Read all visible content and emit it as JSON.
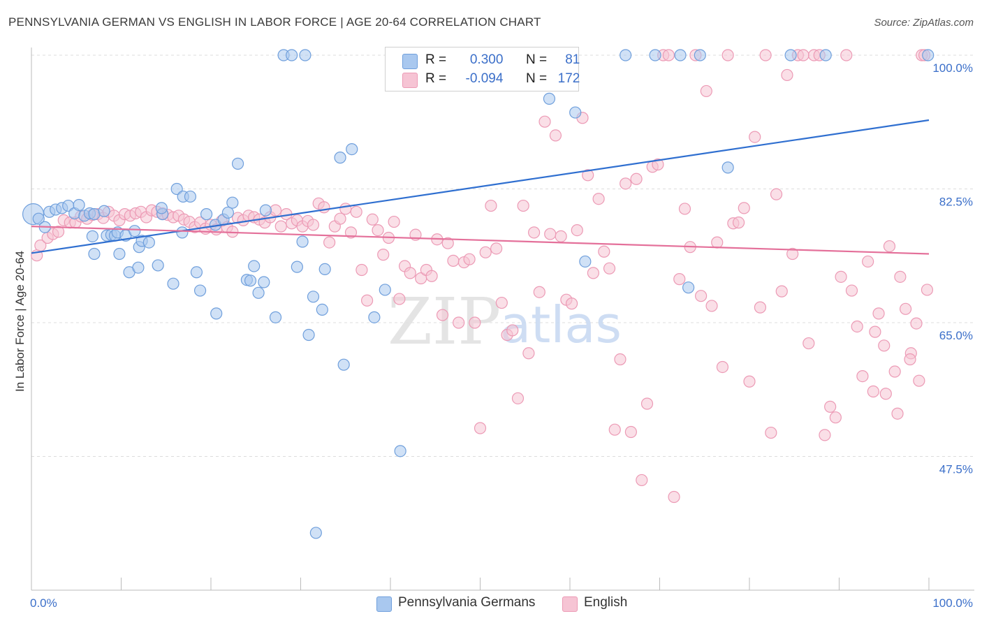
{
  "header": {
    "title": "PENNSYLVANIA GERMAN VS ENGLISH IN LABOR FORCE | AGE 20-64 CORRELATION CHART",
    "source": "Source: ZipAtlas.com"
  },
  "legend": {
    "rows": [
      {
        "r_label": "R =",
        "r_value": "0.300",
        "n_label": "N =",
        "n_value": "81"
      },
      {
        "r_label": "R =",
        "r_value": "-0.094",
        "n_label": "N =",
        "n_value": "172"
      }
    ]
  },
  "watermark": {
    "zip": "ZIP",
    "atlas": "atlas"
  },
  "chart_data": {
    "type": "scatter",
    "xlabel": "",
    "ylabel": "In Labor Force | Age 20-64",
    "xlim": [
      0,
      100
    ],
    "ylim": [
      30,
      100
    ],
    "x_tick_labels": [
      {
        "value": 0,
        "label": "0.0%"
      },
      {
        "value": 100,
        "label": "100.0%"
      }
    ],
    "y_tick_labels": [
      {
        "value": 100,
        "label": "100.0%"
      },
      {
        "value": 82.5,
        "label": "82.5%"
      },
      {
        "value": 65,
        "label": "65.0%"
      },
      {
        "value": 47.5,
        "label": "47.5%"
      }
    ],
    "grid": true,
    "legend_position": "top-center",
    "colors": {
      "blue_fill": "#a9c8ef",
      "blue_stroke": "#6f9fdc",
      "blue_line": "#2f6fd0",
      "pink_fill": "#f6c4d4",
      "pink_stroke": "#ec9ab5",
      "pink_line": "#e4709a",
      "tick_label": "#3b6fc9",
      "grid": "#dcdcdc"
    },
    "series": [
      {
        "name": "Pennsylvania Germans",
        "color": "#a9c8ef",
        "trend": {
          "x": [
            0,
            100
          ],
          "y": [
            74.1,
            91.5
          ]
        },
        "points": [
          [
            0.2,
            79.2
          ],
          [
            0.8,
            78.6
          ],
          [
            1.5,
            77.5
          ],
          [
            2.0,
            79.5
          ],
          [
            2.7,
            79.8
          ],
          [
            3.4,
            80.0
          ],
          [
            4.1,
            80.3
          ],
          [
            4.8,
            79.3
          ],
          [
            5.3,
            80.4
          ],
          [
            5.9,
            79.0
          ],
          [
            6.5,
            79.3
          ],
          [
            7.0,
            79.2
          ],
          [
            6.8,
            76.3
          ],
          [
            8.1,
            79.6
          ],
          [
            8.4,
            76.4
          ],
          [
            8.9,
            76.5
          ],
          [
            9.3,
            76.4
          ],
          [
            9.6,
            76.8
          ],
          [
            10.5,
            76.4
          ],
          [
            11.5,
            77.0
          ],
          [
            7.0,
            74.0
          ],
          [
            9.8,
            74.0
          ],
          [
            12.0,
            74.9
          ],
          [
            12.3,
            75.7
          ],
          [
            13.1,
            75.5
          ],
          [
            10.9,
            71.6
          ],
          [
            11.9,
            72.2
          ],
          [
            14.1,
            72.5
          ],
          [
            14.6,
            79.2
          ],
          [
            14.5,
            80.0
          ],
          [
            15.8,
            70.1
          ],
          [
            16.2,
            82.5
          ],
          [
            16.8,
            76.8
          ],
          [
            16.9,
            81.5
          ],
          [
            17.7,
            81.5
          ],
          [
            18.4,
            71.6
          ],
          [
            18.8,
            69.2
          ],
          [
            19.5,
            79.2
          ],
          [
            20.5,
            77.8
          ],
          [
            20.6,
            66.2
          ],
          [
            21.4,
            78.5
          ],
          [
            21.9,
            79.4
          ],
          [
            22.4,
            80.7
          ],
          [
            23.0,
            85.8
          ],
          [
            24.0,
            70.6
          ],
          [
            24.4,
            70.5
          ],
          [
            24.8,
            72.4
          ],
          [
            25.3,
            68.9
          ],
          [
            25.9,
            70.3
          ],
          [
            26.1,
            79.7
          ],
          [
            27.2,
            65.7
          ],
          [
            28.1,
            100.0
          ],
          [
            29.0,
            100.0
          ],
          [
            29.6,
            72.3
          ],
          [
            30.2,
            75.6
          ],
          [
            30.5,
            100.0
          ],
          [
            30.9,
            63.4
          ],
          [
            31.4,
            68.4
          ],
          [
            32.4,
            66.7
          ],
          [
            32.7,
            72.0
          ],
          [
            34.4,
            86.6
          ],
          [
            34.8,
            59.5
          ],
          [
            35.7,
            87.7
          ],
          [
            38.2,
            65.7
          ],
          [
            39.4,
            69.3
          ],
          [
            41.1,
            48.2
          ],
          [
            31.7,
            37.5
          ],
          [
            57.7,
            94.3
          ],
          [
            55.1,
            100.0
          ],
          [
            58.5,
            100.0
          ],
          [
            60.6,
            92.5
          ],
          [
            61.7,
            73.0
          ],
          [
            66.2,
            100.0
          ],
          [
            69.5,
            100.0
          ],
          [
            73.2,
            69.6
          ],
          [
            72.3,
            100.0
          ],
          [
            84.6,
            100.0
          ],
          [
            88.5,
            100.0
          ],
          [
            99.9,
            100.0
          ],
          [
            74.5,
            100.0
          ],
          [
            77.6,
            85.3
          ]
        ]
      },
      {
        "name": "English",
        "color": "#f6c4d4",
        "trend": {
          "x": [
            0,
            100
          ],
          "y": [
            77.6,
            74.0
          ]
        },
        "points": [
          [
            0.6,
            73.8
          ],
          [
            1.0,
            75.1
          ],
          [
            1.8,
            76.1
          ],
          [
            2.4,
            76.6
          ],
          [
            3.0,
            76.9
          ],
          [
            3.6,
            78.4
          ],
          [
            4.3,
            78.1
          ],
          [
            4.9,
            78.1
          ],
          [
            5.5,
            78.9
          ],
          [
            6.2,
            78.6
          ],
          [
            6.8,
            79.1
          ],
          [
            7.4,
            79.2
          ],
          [
            8.0,
            78.7
          ],
          [
            8.6,
            79.5
          ],
          [
            9.2,
            79.0
          ],
          [
            9.8,
            78.4
          ],
          [
            10.4,
            79.2
          ],
          [
            11.0,
            79.0
          ],
          [
            11.6,
            79.3
          ],
          [
            12.2,
            79.5
          ],
          [
            12.8,
            78.8
          ],
          [
            13.4,
            79.7
          ],
          [
            14.0,
            79.5
          ],
          [
            14.6,
            79.3
          ],
          [
            15.2,
            79.1
          ],
          [
            15.8,
            78.8
          ],
          [
            16.4,
            79.0
          ],
          [
            17.0,
            78.5
          ],
          [
            17.6,
            78.2
          ],
          [
            18.2,
            77.5
          ],
          [
            18.8,
            78.1
          ],
          [
            19.4,
            77.3
          ],
          [
            20.0,
            77.8
          ],
          [
            20.6,
            77.2
          ],
          [
            21.2,
            78.3
          ],
          [
            21.8,
            77.5
          ],
          [
            22.4,
            76.9
          ],
          [
            23.0,
            78.7
          ],
          [
            23.6,
            78.4
          ],
          [
            24.2,
            79.0
          ],
          [
            24.8,
            78.8
          ],
          [
            25.4,
            78.5
          ],
          [
            26.0,
            78.1
          ],
          [
            26.6,
            78.8
          ],
          [
            27.2,
            79.7
          ],
          [
            27.8,
            77.6
          ],
          [
            28.4,
            79.2
          ],
          [
            29.0,
            78.0
          ],
          [
            29.6,
            78.4
          ],
          [
            30.2,
            77.6
          ],
          [
            30.8,
            78.3
          ],
          [
            31.4,
            77.8
          ],
          [
            32.0,
            80.6
          ],
          [
            32.6,
            80.1
          ],
          [
            33.2,
            75.5
          ],
          [
            33.8,
            77.6
          ],
          [
            34.4,
            78.6
          ],
          [
            35.0,
            79.9
          ],
          [
            35.6,
            76.8
          ],
          [
            36.2,
            79.5
          ],
          [
            36.8,
            71.9
          ],
          [
            37.4,
            67.9
          ],
          [
            38.0,
            78.5
          ],
          [
            38.6,
            77.1
          ],
          [
            39.2,
            73.9
          ],
          [
            39.8,
            76.1
          ],
          [
            40.4,
            78.2
          ],
          [
            41.0,
            68.1
          ],
          [
            41.6,
            72.4
          ],
          [
            42.2,
            71.5
          ],
          [
            42.8,
            76.5
          ],
          [
            43.4,
            70.8
          ],
          [
            44.0,
            71.9
          ],
          [
            44.6,
            71.1
          ],
          [
            45.2,
            75.9
          ],
          [
            45.8,
            66.0
          ],
          [
            46.4,
            75.4
          ],
          [
            47.0,
            73.1
          ],
          [
            47.6,
            65.0
          ],
          [
            48.2,
            72.9
          ],
          [
            48.8,
            73.3
          ],
          [
            49.4,
            65.0
          ],
          [
            50.0,
            51.2
          ],
          [
            50.6,
            74.2
          ],
          [
            51.2,
            80.3
          ],
          [
            51.8,
            74.7
          ],
          [
            52.4,
            67.6
          ],
          [
            53.0,
            63.4
          ],
          [
            53.6,
            64.0
          ],
          [
            54.2,
            55.1
          ],
          [
            54.8,
            80.3
          ],
          [
            55.4,
            61.0
          ],
          [
            56.0,
            76.8
          ],
          [
            56.6,
            69.0
          ],
          [
            57.2,
            91.3
          ],
          [
            57.8,
            76.6
          ],
          [
            58.4,
            89.5
          ],
          [
            59.0,
            76.3
          ],
          [
            59.6,
            68.0
          ],
          [
            60.2,
            67.5
          ],
          [
            60.8,
            77.1
          ],
          [
            61.4,
            91.8
          ],
          [
            62.0,
            84.3
          ],
          [
            62.6,
            71.5
          ],
          [
            63.2,
            81.2
          ],
          [
            63.8,
            74.3
          ],
          [
            64.4,
            72.1
          ],
          [
            65.0,
            51.0
          ],
          [
            65.6,
            60.2
          ],
          [
            66.2,
            83.2
          ],
          [
            66.8,
            50.7
          ],
          [
            67.4,
            83.8
          ],
          [
            68.0,
            44.4
          ],
          [
            68.6,
            54.4
          ],
          [
            69.2,
            85.4
          ],
          [
            69.8,
            85.7
          ],
          [
            70.4,
            100.0
          ],
          [
            71.0,
            100.0
          ],
          [
            71.6,
            42.2
          ],
          [
            72.2,
            70.7
          ],
          [
            72.8,
            79.9
          ],
          [
            73.4,
            74.9
          ],
          [
            74.0,
            100.0
          ],
          [
            74.6,
            68.5
          ],
          [
            75.2,
            95.3
          ],
          [
            75.8,
            67.2
          ],
          [
            76.4,
            75.5
          ],
          [
            77.0,
            59.2
          ],
          [
            77.6,
            100.0
          ],
          [
            78.2,
            78.0
          ],
          [
            78.8,
            78.1
          ],
          [
            79.4,
            80.0
          ],
          [
            80.0,
            57.3
          ],
          [
            80.6,
            89.3
          ],
          [
            81.2,
            67.0
          ],
          [
            81.8,
            100.0
          ],
          [
            82.4,
            50.6
          ],
          [
            83.0,
            81.8
          ],
          [
            83.6,
            69.1
          ],
          [
            84.2,
            97.4
          ],
          [
            84.8,
            74.0
          ],
          [
            85.4,
            100.0
          ],
          [
            86.0,
            100.0
          ],
          [
            86.6,
            62.3
          ],
          [
            87.2,
            100.0
          ],
          [
            87.8,
            100.0
          ],
          [
            88.4,
            50.3
          ],
          [
            89.0,
            54.0
          ],
          [
            89.6,
            52.6
          ],
          [
            90.2,
            71.0
          ],
          [
            90.8,
            100.0
          ],
          [
            91.4,
            69.2
          ],
          [
            92.0,
            64.5
          ],
          [
            92.6,
            58.0
          ],
          [
            93.2,
            73.0
          ],
          [
            93.8,
            56.0
          ],
          [
            94.4,
            66.2
          ],
          [
            95.0,
            62.0
          ],
          [
            95.6,
            75.0
          ],
          [
            96.2,
            58.6
          ],
          [
            96.8,
            71.0
          ],
          [
            97.4,
            66.8
          ],
          [
            98.0,
            61.0
          ],
          [
            98.6,
            64.9
          ],
          [
            99.2,
            100.0
          ],
          [
            99.8,
            69.3
          ],
          [
            99.5,
            100.0
          ],
          [
            98.9,
            57.4
          ],
          [
            97.9,
            60.2
          ],
          [
            96.5,
            53.1
          ],
          [
            95.2,
            55.7
          ],
          [
            94.0,
            63.8
          ]
        ]
      }
    ]
  }
}
